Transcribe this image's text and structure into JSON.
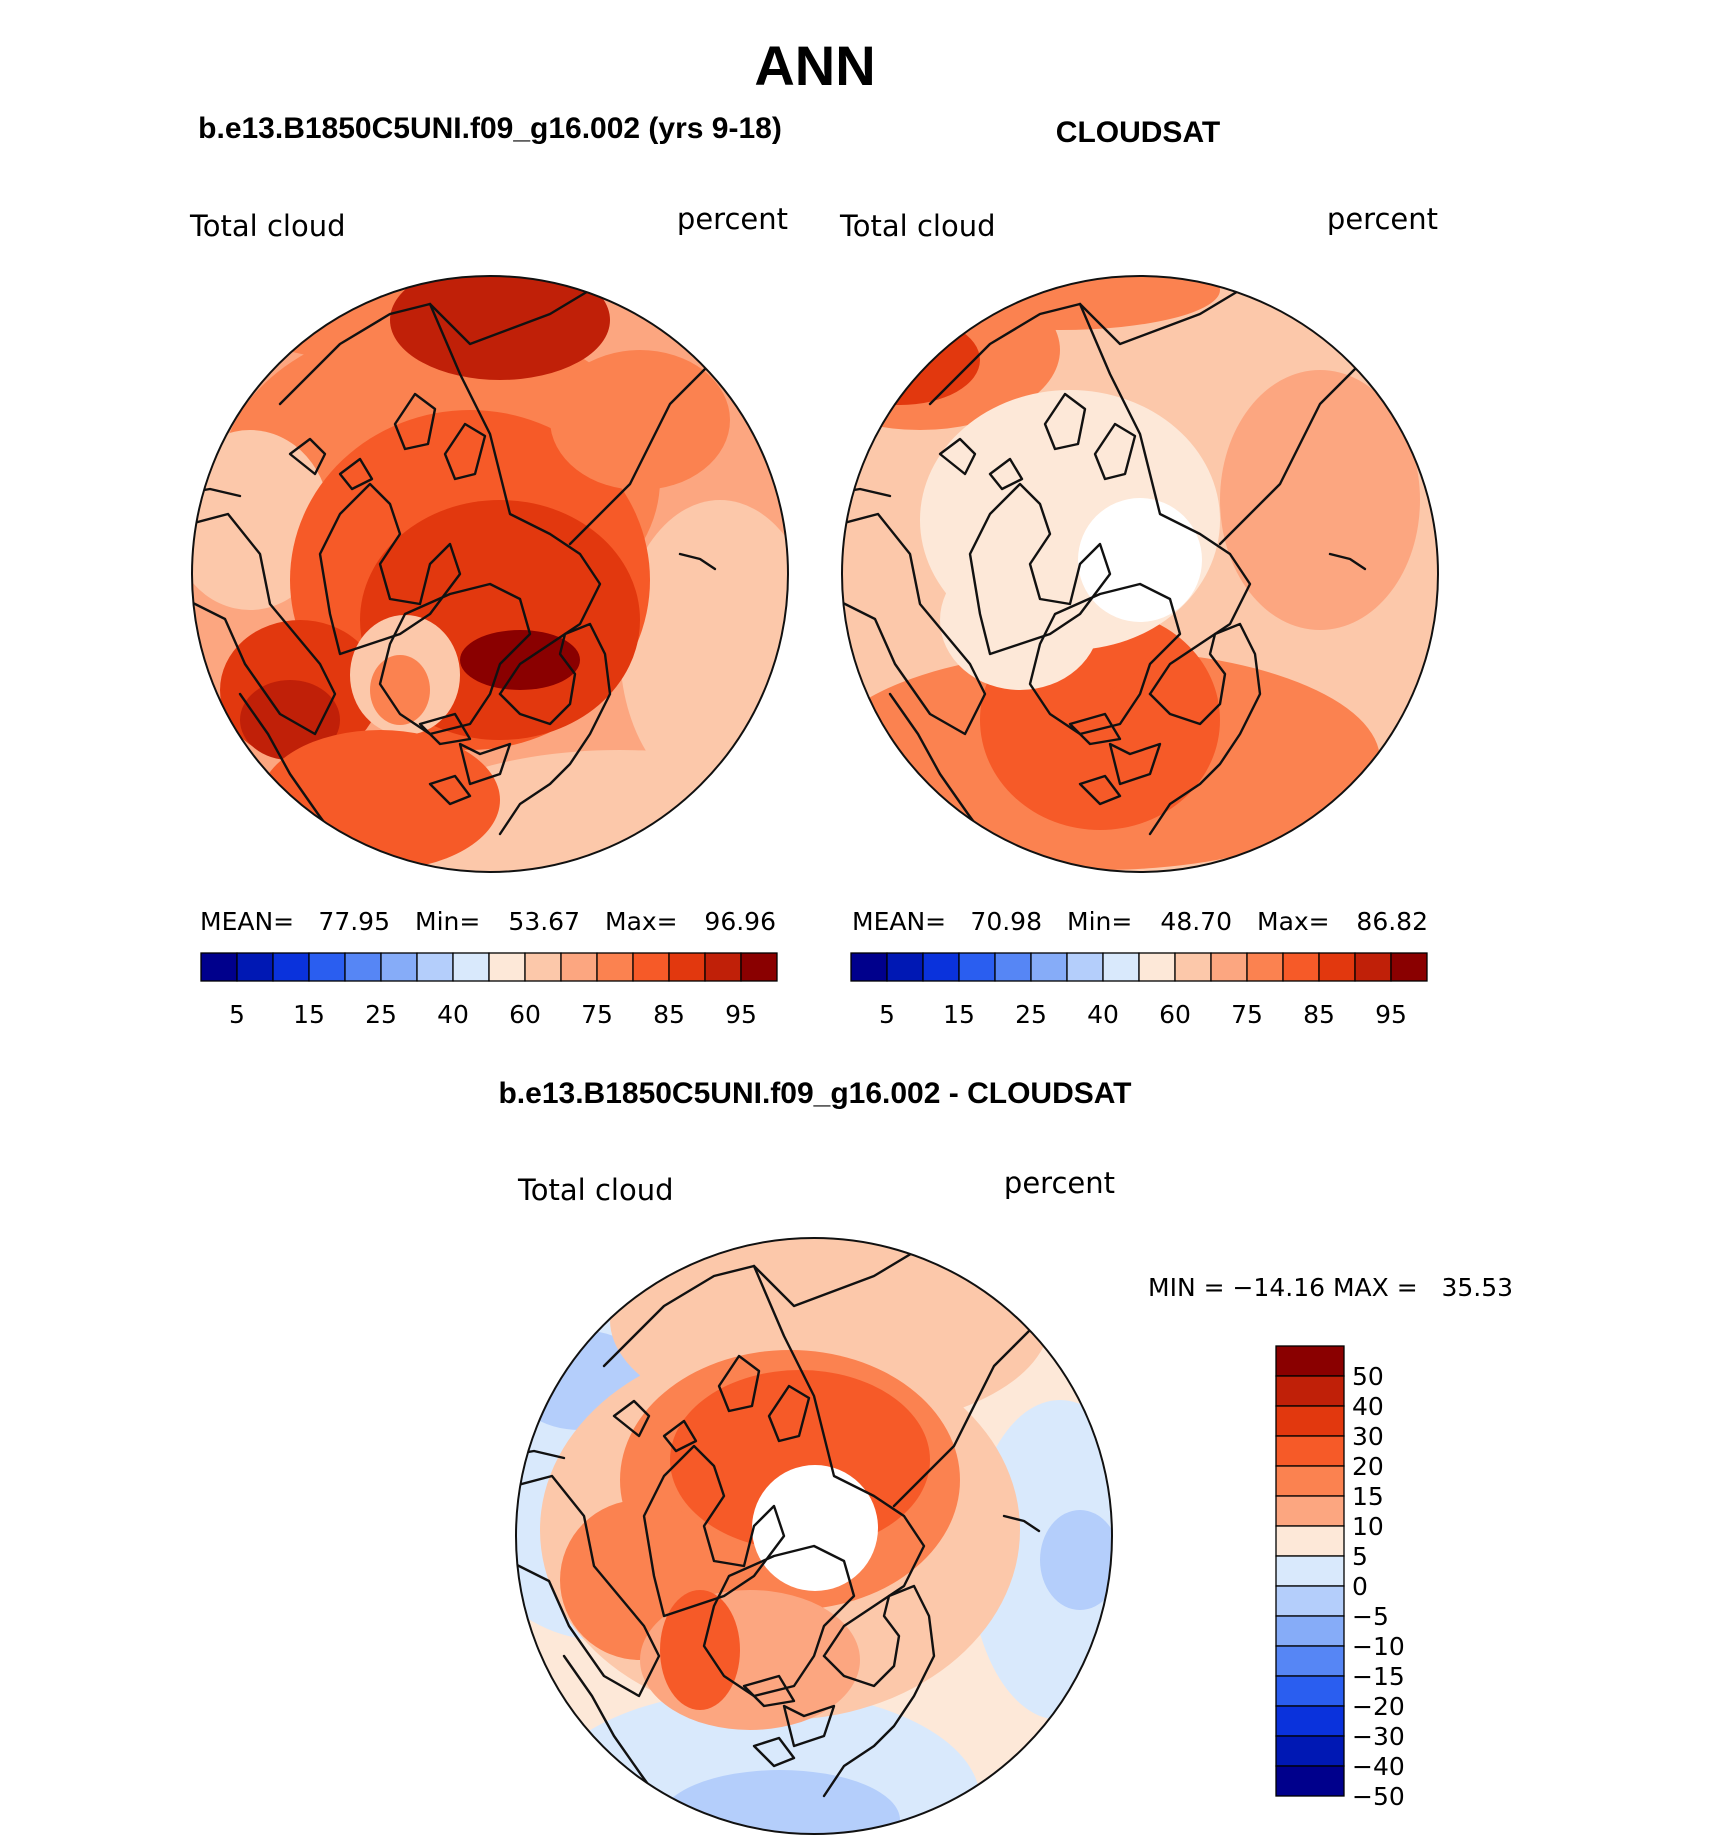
{
  "title": "ANN",
  "panels": [
    {
      "id": "model",
      "header": "b.e13.B1850C5UNI.f09_g16.002 (yrs 9-18)",
      "left_label": "Total cloud",
      "right_label": "percent",
      "stats": {
        "mean_label": "MEAN=",
        "mean": "77.95",
        "min_label": "Min=",
        "min": "53.67",
        "max_label": "Max=",
        "max": "96.96"
      }
    },
    {
      "id": "obs",
      "header": "CLOUDSAT",
      "left_label": "Total cloud",
      "right_label": "percent",
      "stats": {
        "mean_label": "MEAN=",
        "mean": "70.98",
        "min_label": "Min=",
        "min": "48.70",
        "max_label": "Max=",
        "max": "86.82"
      }
    }
  ],
  "abs_colorbar": {
    "colors": [
      "#00008c",
      "#0018b4",
      "#0a32dc",
      "#2a5ef0",
      "#5686f5",
      "#86acf8",
      "#b4cefb",
      "#d9e9fc",
      "#fde8d8",
      "#fcc8aa",
      "#fca680",
      "#fb8250",
      "#f65a28",
      "#e2380e",
      "#c02008",
      "#8a0000"
    ],
    "tick_labels": [
      "5",
      "15",
      "25",
      "40",
      "60",
      "75",
      "85",
      "95"
    ]
  },
  "diff_panel": {
    "header": "b.e13.B1850C5UNI.f09_g16.002 - CLOUDSAT",
    "left_label": "Total cloud",
    "right_label": "percent",
    "minmax_text": "MIN = −14.16 MAX =   35.53"
  },
  "diff_colorbar": {
    "colors": [
      "#8a0000",
      "#c02008",
      "#e2380e",
      "#f65a28",
      "#fb8250",
      "#fca680",
      "#fde8d8",
      "#d9e9fc",
      "#b4cefb",
      "#86acf8",
      "#5686f5",
      "#2a5ef0",
      "#0a32dc",
      "#0018b4",
      "#00008c"
    ],
    "tick_labels": [
      "50",
      "40",
      "30",
      "20",
      "15",
      "10",
      "5",
      "0",
      "−5",
      "−10",
      "−15",
      "−20",
      "−30",
      "−40",
      "−50"
    ]
  }
}
